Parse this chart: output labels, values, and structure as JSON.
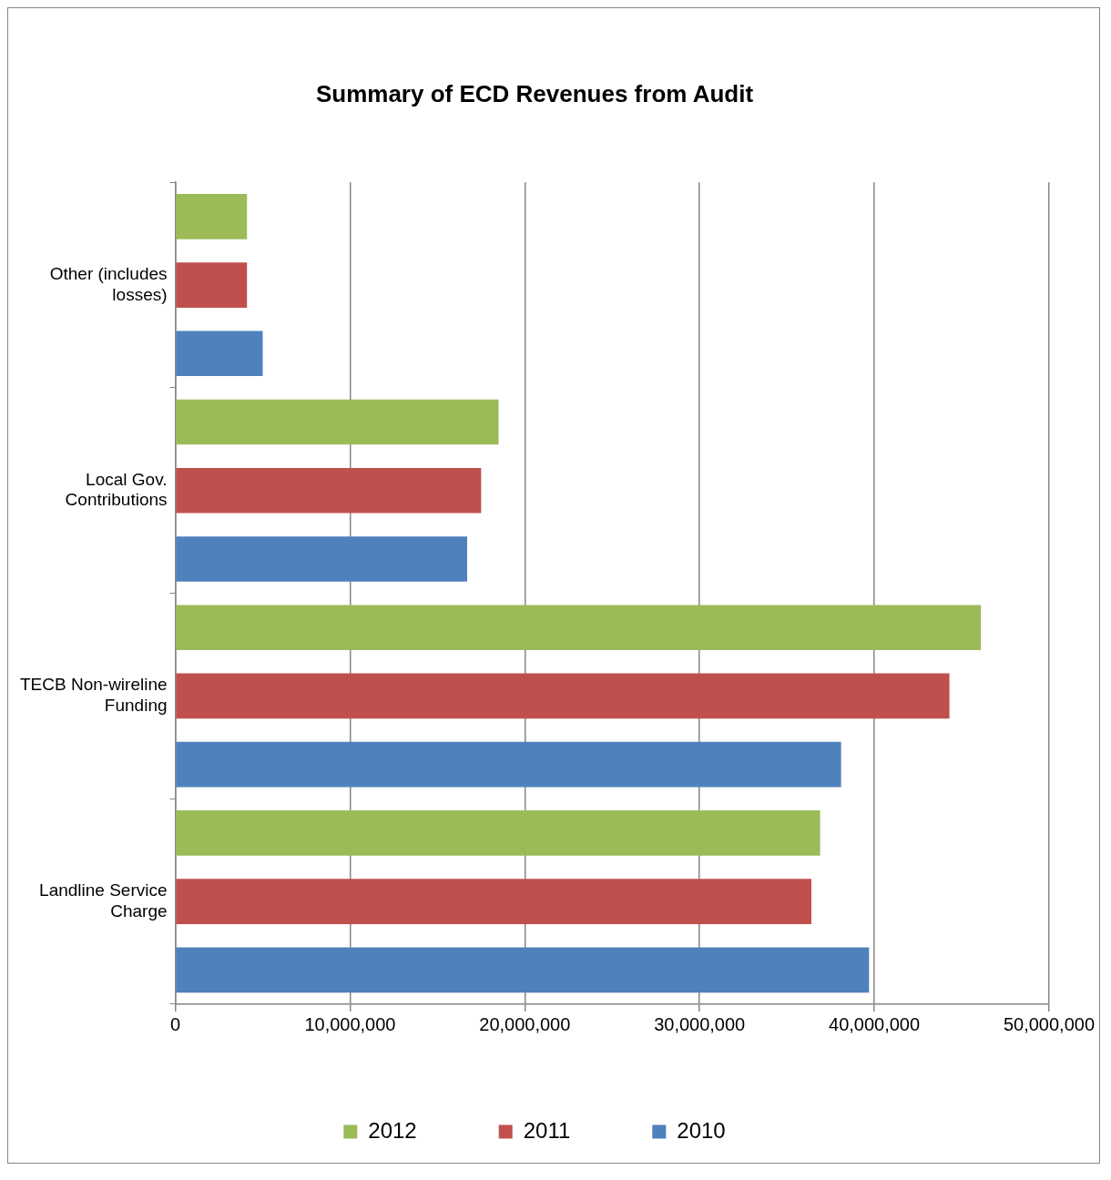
{
  "chart_data": {
    "type": "bar",
    "orientation": "horizontal",
    "title": "Summary of ECD Revenues from Audit",
    "categories": [
      "Other (includes losses)",
      "Local Gov. Contributions",
      "TECB Non-wireline Funding",
      "Landline Service Charge"
    ],
    "series": [
      {
        "name": "2012",
        "color": "#9bbb59",
        "values": [
          4100000,
          18500000,
          46100000,
          36900000
        ]
      },
      {
        "name": "2011",
        "color": "#c0504d",
        "values": [
          4100000,
          17500000,
          44300000,
          36400000
        ]
      },
      {
        "name": "2010",
        "color": "#4f81bd",
        "values": [
          5000000,
          16700000,
          38100000,
          39700000
        ]
      }
    ],
    "xlim": [
      0,
      50000000
    ],
    "xticks": [
      0,
      {
        "value": 10000000,
        "label": "10,000,000"
      },
      {
        "value": 20000000,
        "label": "20,000,000"
      },
      {
        "value": 30000000,
        "label": "30,000,000"
      },
      {
        "value": 40000000,
        "label": "40,000,000"
      },
      {
        "value": 50000000,
        "label": "50,000,000"
      }
    ],
    "grid": "x",
    "legend": "bottom"
  }
}
